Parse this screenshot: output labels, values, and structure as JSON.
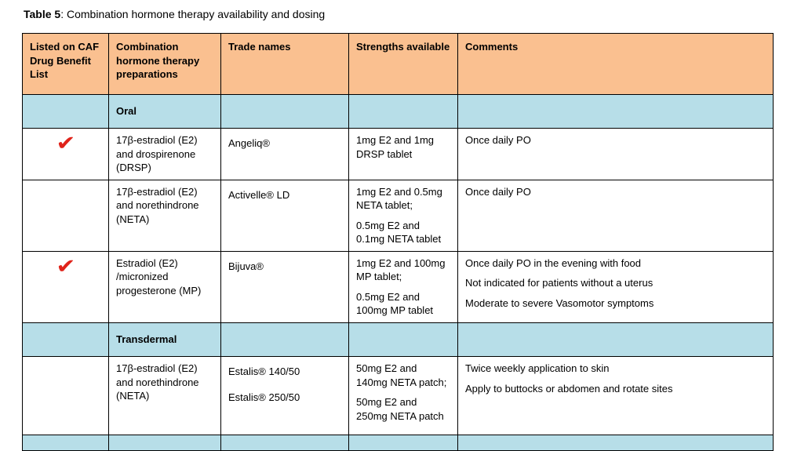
{
  "title": {
    "label": "Table 5",
    "rest": ": Combination hormone therapy availability and dosing"
  },
  "colors": {
    "header_bg": "#FAC090",
    "section_bg": "#B7DEE8",
    "check": "#E0231A",
    "border": "#000000"
  },
  "columns": [
    "Listed on CAF Drug Benefit List",
    "Combination hormone therapy preparations",
    "Trade names",
    "Strengths available",
    "Comments"
  ],
  "rows": [
    {
      "type": "section",
      "label": "Oral"
    },
    {
      "type": "data",
      "listed": "✔",
      "preparation": "17β-estradiol (E2) and drospirenone (DRSP)",
      "trade_names": [
        "Angeliq®"
      ],
      "strengths": [
        "1mg E2 and 1mg DRSP tablet"
      ],
      "comments": [
        "Once daily PO"
      ]
    },
    {
      "type": "data",
      "listed": "",
      "preparation": "17β-estradiol (E2) and norethindrone (NETA)",
      "trade_names": [
        "Activelle® LD"
      ],
      "strengths": [
        "1mg E2 and 0.5mg NETA tablet;",
        "0.5mg E2 and 0.1mg NETA tablet"
      ],
      "comments": [
        "Once daily PO"
      ]
    },
    {
      "type": "data",
      "listed": "✔",
      "preparation": "Estradiol (E2) /micronized progesterone (MP)",
      "trade_names": [
        "Bijuva®"
      ],
      "strengths": [
        "1mg E2 and 100mg MP tablet;",
        "0.5mg E2 and 100mg MP tablet"
      ],
      "comments": [
        "Once daily PO in the evening with food",
        "Not indicated for patients without a uterus",
        "Moderate to severe Vasomotor symptoms"
      ]
    },
    {
      "type": "section",
      "label": "Transdermal"
    },
    {
      "type": "data",
      "listed": "",
      "preparation": "17β-estradiol (E2) and norethindrone (NETA)",
      "trade_names": [
        "Estalis® 140/50",
        "Estalis® 250/50"
      ],
      "strengths": [
        "50mg E2 and 140mg NETA patch;",
        "50mg E2 and 250mg NETA patch"
      ],
      "comments": [
        "Twice weekly application to skin",
        "Apply to buttocks or abdomen and rotate sites"
      ]
    },
    {
      "type": "section",
      "label": ""
    }
  ]
}
